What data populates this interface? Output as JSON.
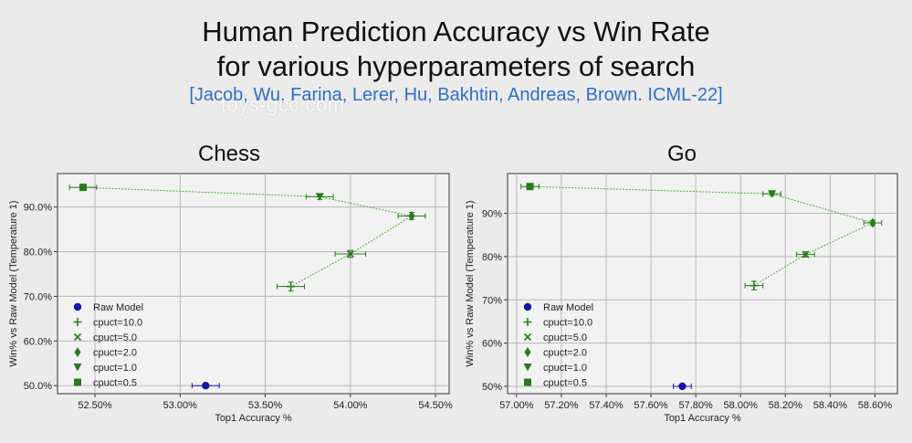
{
  "header": {
    "title_line1": "Human Prediction Accuracy vs Win Rate",
    "title_line2": "for various hyperparameters of search",
    "citation": "[Jacob, Wu, Farina, Lerer, Hu, Bakhtin, Andreas, Brown. ICML-22]",
    "watermark": "toys-gcc.com"
  },
  "colors": {
    "series": "#2a7a1e",
    "raw": "#1515b0",
    "line": "#4caf3a",
    "citation": "#2f6fc6"
  },
  "chart_data": [
    {
      "type": "scatter",
      "title": "Chess",
      "xlabel": "Top1 Accuracy %",
      "ylabel": "Win% vs Raw Model (Temperature 1)",
      "xlim": [
        52.28,
        54.58
      ],
      "ylim": [
        48.2,
        97.5
      ],
      "xticks": [
        52.5,
        53.0,
        53.5,
        54.0,
        54.5
      ],
      "xtick_labels": [
        "52.50%",
        "53.00%",
        "53.50%",
        "54.00%",
        "54.50%"
      ],
      "yticks": [
        50,
        60,
        70,
        80,
        90
      ],
      "ytick_labels": [
        "50.0%",
        "60.0%",
        "70.0%",
        "80.0%",
        "90.0%"
      ],
      "grid": true,
      "legend_position": "lower-left",
      "series": [
        {
          "name": "Raw Model",
          "marker": "circle",
          "x": 53.15,
          "y": 50.0,
          "xerr": 0.08,
          "yerr": 0
        },
        {
          "name": "cpuct=10.0",
          "marker": "plus",
          "x": 53.65,
          "y": 72.2,
          "xerr": 0.08,
          "yerr": 1.0
        },
        {
          "name": "cpuct=5.0",
          "marker": "x",
          "x": 54.0,
          "y": 79.5,
          "xerr": 0.09,
          "yerr": 0.8
        },
        {
          "name": "cpuct=2.0",
          "marker": "diamond",
          "x": 54.36,
          "y": 88.0,
          "xerr": 0.08,
          "yerr": 0.8
        },
        {
          "name": "cpuct=1.0",
          "marker": "triangle-down",
          "x": 53.82,
          "y": 92.3,
          "xerr": 0.08,
          "yerr": 0.6
        },
        {
          "name": "cpuct=0.5",
          "marker": "square",
          "x": 52.43,
          "y": 94.4,
          "xerr": 0.08,
          "yerr": 0.4
        }
      ],
      "line_order": [
        "cpuct=0.5",
        "cpuct=1.0",
        "cpuct=2.0",
        "cpuct=5.0",
        "cpuct=10.0"
      ]
    },
    {
      "type": "scatter",
      "title": "Go",
      "xlabel": "Top1 Accuracy %",
      "ylabel": "Win% vs Raw Model (Temperature 1)",
      "xlim": [
        56.96,
        58.7
      ],
      "ylim": [
        48.3,
        99.2
      ],
      "xticks": [
        57.0,
        57.2,
        57.4,
        57.6,
        57.8,
        58.0,
        58.2,
        58.4,
        58.6
      ],
      "xtick_labels": [
        "57.00%",
        "57.20%",
        "57.40%",
        "57.60%",
        "57.80%",
        "58.00%",
        "58.20%",
        "58.40%",
        "58.60%"
      ],
      "yticks": [
        50,
        60,
        70,
        80,
        90
      ],
      "ytick_labels": [
        "50%",
        "60%",
        "70%",
        "80%",
        "90%"
      ],
      "grid": true,
      "legend_position": "lower-left",
      "series": [
        {
          "name": "Raw Model",
          "marker": "circle",
          "x": 57.74,
          "y": 50.0,
          "xerr": 0.04,
          "yerr": 0
        },
        {
          "name": "cpuct=10.0",
          "marker": "plus",
          "x": 58.06,
          "y": 73.3,
          "xerr": 0.04,
          "yerr": 1.0
        },
        {
          "name": "cpuct=5.0",
          "marker": "x",
          "x": 58.29,
          "y": 80.5,
          "xerr": 0.04,
          "yerr": 0.6
        },
        {
          "name": "cpuct=2.0",
          "marker": "diamond",
          "x": 58.59,
          "y": 87.8,
          "xerr": 0.04,
          "yerr": 0.6
        },
        {
          "name": "cpuct=1.0",
          "marker": "triangle-down",
          "x": 58.14,
          "y": 94.5,
          "xerr": 0.04,
          "yerr": 0.4
        },
        {
          "name": "cpuct=0.5",
          "marker": "square",
          "x": 57.06,
          "y": 96.2,
          "xerr": 0.04,
          "yerr": 0.3
        }
      ],
      "line_order": [
        "cpuct=0.5",
        "cpuct=1.0",
        "cpuct=2.0",
        "cpuct=5.0",
        "cpuct=10.0"
      ]
    }
  ]
}
